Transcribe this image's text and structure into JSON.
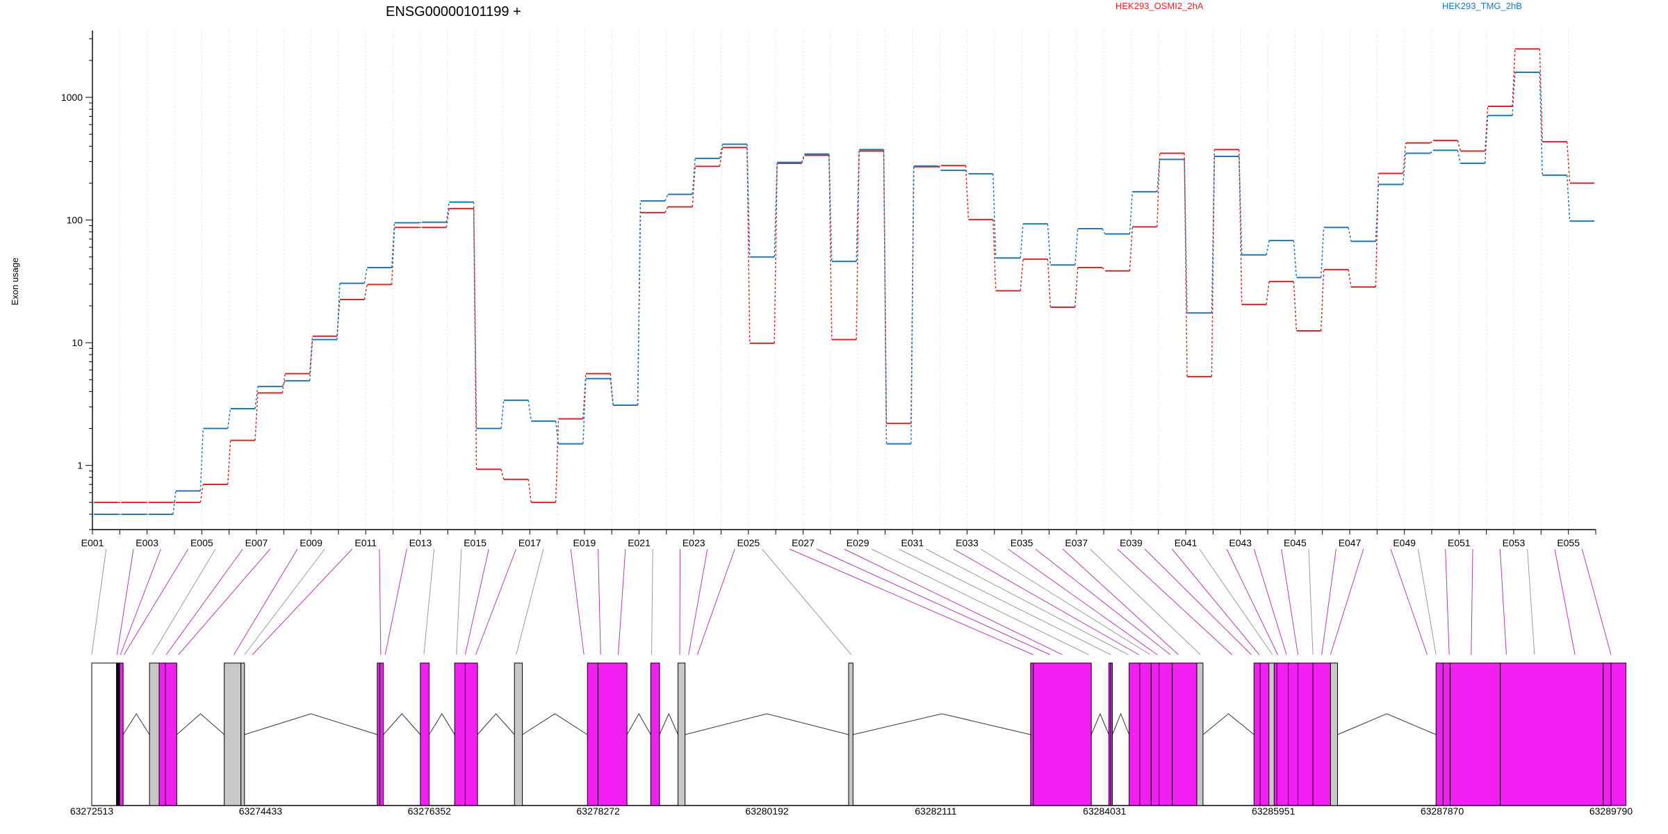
{
  "chart_data": {
    "type": "line",
    "title": "ENSG00000101199 +",
    "ylabel": "Exon usage",
    "xlabel": "",
    "yscale": "log",
    "ylim": [
      0.3,
      3500
    ],
    "yticks": [
      1,
      10,
      100,
      1000
    ],
    "ytick_labels": [
      "1",
      "10",
      "100",
      "1000"
    ],
    "grid": "vertical dotted lines between exon bins",
    "legend_placement": "top",
    "exons": [
      "E001",
      "E002",
      "E003",
      "E004",
      "E005",
      "E006",
      "E007",
      "E008",
      "E009",
      "E010",
      "E011",
      "E012",
      "E013",
      "E014",
      "E015",
      "E016",
      "E017",
      "E018",
      "E019",
      "E020",
      "E021",
      "E022",
      "E023",
      "E024",
      "E025",
      "E026",
      "E027",
      "E028",
      "E029",
      "E030",
      "E031",
      "E032",
      "E033",
      "E034",
      "E035",
      "E036",
      "E037",
      "E038",
      "E039",
      "E040",
      "E041",
      "E042",
      "E043",
      "E044",
      "E045",
      "E046",
      "E047",
      "E048",
      "E049",
      "E050",
      "E051",
      "E052",
      "E053",
      "E054",
      "E055"
    ],
    "xtick_labels": [
      "E001",
      "E003",
      "E005",
      "E007",
      "E009",
      "E011",
      "E013",
      "E015",
      "E017",
      "E019",
      "E021",
      "E023",
      "E025",
      "E027",
      "E029",
      "E031",
      "E033",
      "E035",
      "E037",
      "E039",
      "E041",
      "E043",
      "E045",
      "E047",
      "E049",
      "E051",
      "E053",
      "E055"
    ],
    "series": [
      {
        "name": "HEK293_OSMI2_2hA",
        "color": "#d62728",
        "values": [
          0.5,
          0.5,
          0.5,
          0.5,
          0.7,
          1.6,
          3.9,
          5.6,
          11.3,
          22.5,
          29.8,
          87,
          87,
          124,
          0.93,
          0.77,
          0.5,
          2.4,
          5.6,
          3.1,
          115,
          128,
          274,
          390,
          9.9,
          290,
          337,
          10.6,
          365,
          2.2,
          272,
          278,
          101,
          26.5,
          48,
          19.5,
          41,
          38.5,
          88,
          350,
          5.3,
          375,
          20.5,
          31.5,
          12.5,
          39.5,
          28.5,
          240,
          425,
          445,
          365,
          845,
          2480,
          435,
          200
        ]
      },
      {
        "name": "HEK293_TMG_2hB",
        "color": "#1f77b4",
        "values": [
          0.4,
          0.4,
          0.4,
          0.62,
          2.0,
          2.9,
          4.4,
          4.9,
          10.6,
          30.5,
          41,
          95,
          96,
          140,
          2.0,
          3.4,
          2.3,
          1.5,
          5.1,
          3.1,
          143,
          162,
          318,
          415,
          50,
          295,
          345,
          46,
          375,
          1.5,
          275,
          254,
          238,
          49,
          93,
          43,
          85,
          77,
          170,
          312,
          17.5,
          330,
          52,
          68,
          34,
          87,
          67,
          195,
          350,
          370,
          290,
          710,
          1600,
          232,
          98
        ]
      }
    ],
    "gene_model": {
      "coordinate_labels": [
        "63272513",
        "63274433",
        "63276352",
        "63278272",
        "63280192",
        "63282111",
        "63284031",
        "63285951",
        "63287870",
        "63289790"
      ],
      "range": [
        63272513,
        63289790
      ],
      "exon_positions": [
        63272513,
        63272800,
        63272840,
        63272880,
        63273200,
        63273360,
        63273500,
        63274130,
        63274250,
        63274340,
        63275800,
        63275850,
        63276290,
        63276660,
        63276760,
        63276880,
        63277340,
        63278110,
        63278300,
        63278500,
        63278880,
        63279200,
        63279300,
        63279400,
        63281150,
        63283220,
        63283410,
        63283550,
        63283850,
        63284100,
        63284300,
        63284420,
        63284550,
        63284630,
        63284780,
        63284870,
        63285120,
        63285480,
        63285700,
        63285790,
        63285940,
        63286000,
        63286100,
        63286230,
        63286400,
        63286500,
        63286600,
        63287700,
        63287800,
        63287950,
        63288200,
        63288600,
        63288920,
        63289380,
        63289790
      ],
      "exon_blocks": [
        {
          "start": 63272513,
          "end": 63272795,
          "color": "#ffffff"
        },
        {
          "start": 63272795,
          "end": 63272830,
          "color": "#000000"
        },
        {
          "start": 63272830,
          "end": 63272870,
          "color": "#f21ff2"
        },
        {
          "start": 63273170,
          "end": 63273280,
          "color": "#c8c8c8"
        },
        {
          "start": 63273280,
          "end": 63273480,
          "color": "#f21ff2"
        },
        {
          "start": 63274020,
          "end": 63274210,
          "color": "#c8c8c8"
        },
        {
          "start": 63274210,
          "end": 63274250,
          "color": "#c8c8c8"
        },
        {
          "start": 63275760,
          "end": 63275830,
          "color": "#f21ff2"
        },
        {
          "start": 63276250,
          "end": 63276350,
          "color": "#f21ff2"
        },
        {
          "start": 63276640,
          "end": 63276900,
          "color": "#f21ff2"
        },
        {
          "start": 63277320,
          "end": 63277410,
          "color": "#c8c8c8"
        },
        {
          "start": 63278150,
          "end": 63278600,
          "color": "#f21ff2"
        },
        {
          "start": 63278870,
          "end": 63278970,
          "color": "#f21ff2"
        },
        {
          "start": 63279180,
          "end": 63279260,
          "color": "#c8c8c8"
        },
        {
          "start": 63281120,
          "end": 63281170,
          "color": "#c8c8c8"
        },
        {
          "start": 63283190,
          "end": 63283880,
          "color": "#f21ff2"
        },
        {
          "start": 63284080,
          "end": 63284120,
          "color": "#f21ff2"
        },
        {
          "start": 63284310,
          "end": 63285080,
          "color": "#f21ff2"
        },
        {
          "start": 63285080,
          "end": 63285150,
          "color": "#c8c8c8"
        },
        {
          "start": 63285730,
          "end": 63285900,
          "color": "#f21ff2"
        },
        {
          "start": 63285900,
          "end": 63285960,
          "color": "#c8c8c8"
        },
        {
          "start": 63285960,
          "end": 63286600,
          "color": "#f21ff2"
        },
        {
          "start": 63286600,
          "end": 63286680,
          "color": "#c8c8c8"
        },
        {
          "start": 63287800,
          "end": 63289960,
          "color": "#f21ff2"
        }
      ],
      "exon_dividers": [
        63272800,
        63273350,
        63275790,
        63276760,
        63278270,
        63283220,
        63284100,
        63284430,
        63284560,
        63284650,
        63284800,
        63285800,
        63285990,
        63286120,
        63286230,
        63286400,
        63287880,
        63287960,
        63288530,
        63289700,
        63289790
      ]
    }
  }
}
